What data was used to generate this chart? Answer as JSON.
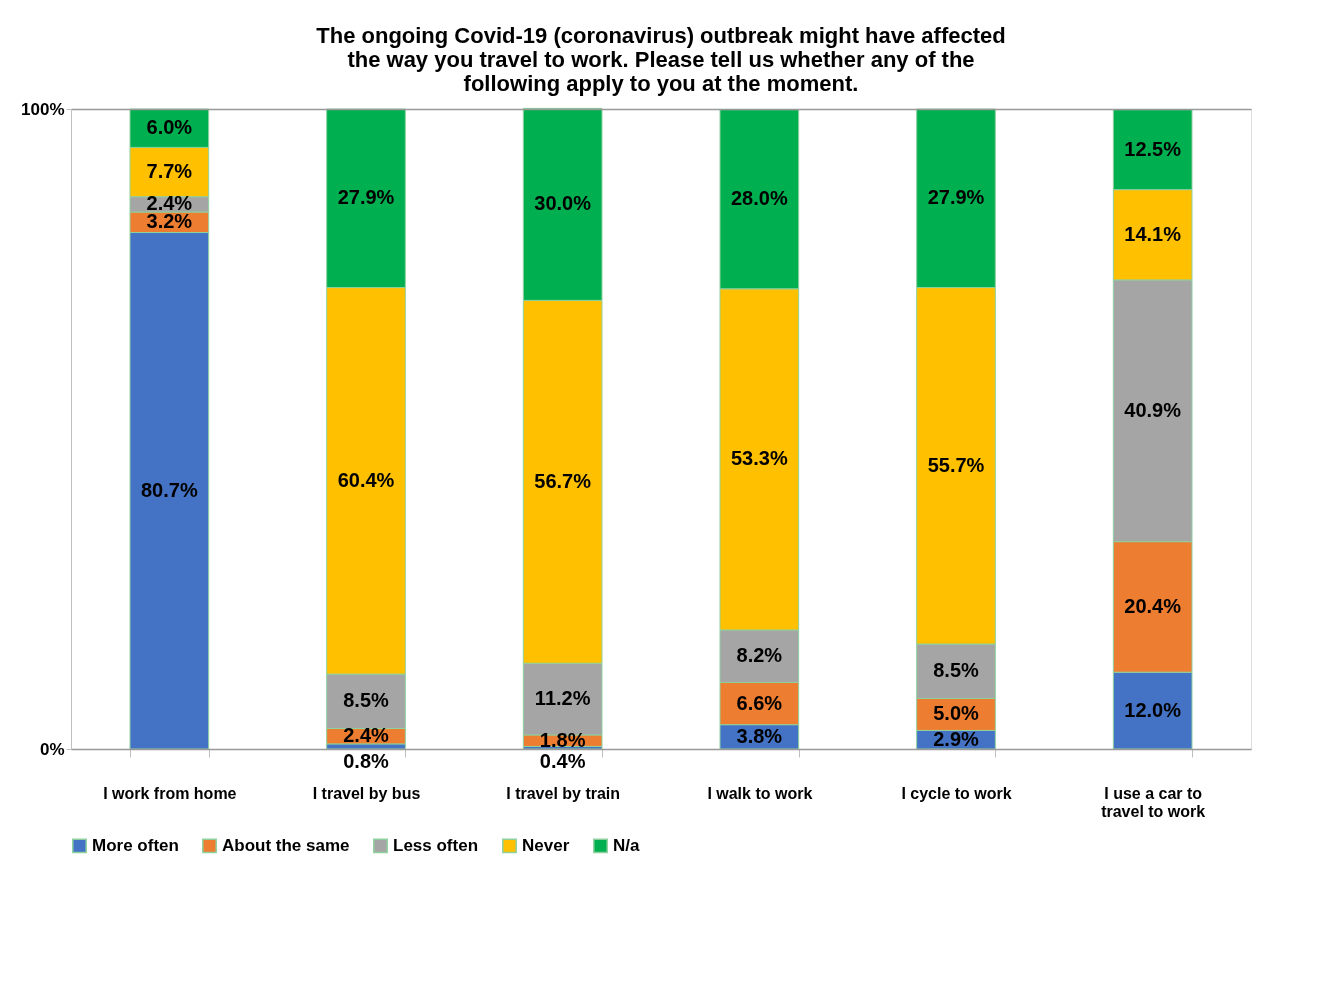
{
  "chart_data": {
    "type": "bar",
    "stacked": true,
    "title": "The ongoing  Covid-19 (coronavirus) outbreak might have affected the way you travel to work. Please tell us whether any of the following apply to you at the moment.",
    "categories": [
      "I work from home",
      "I travel by bus",
      "I travel by train",
      "I walk to work",
      "I cycle to work",
      "I use a car to travel to work"
    ],
    "series": [
      {
        "name": "More often",
        "color": "#4472c4",
        "values": [
          80.7,
          0.8,
          0.4,
          3.8,
          2.9,
          12.0
        ],
        "value_labels": [
          "80.7%",
          "0.8%",
          "0.4%",
          "3.8%",
          "2.9%",
          "12.0%"
        ]
      },
      {
        "name": "About the same",
        "color": "#ed7d31",
        "values": [
          3.2,
          2.4,
          1.8,
          6.6,
          5.0,
          20.4
        ],
        "value_labels": [
          "3.2%",
          "2.4%",
          "1.8%",
          "6.6%",
          "5.0%",
          "20.4%"
        ]
      },
      {
        "name": "Less often",
        "color": "#a5a5a5",
        "values": [
          2.4,
          8.5,
          11.2,
          8.2,
          8.5,
          40.9
        ],
        "value_labels": [
          "2.4%",
          "8.5%",
          "11.2%",
          "8.2%",
          "8.5%",
          "40.9%"
        ]
      },
      {
        "name": "Never",
        "color": "#ffc000",
        "values": [
          7.7,
          60.4,
          56.7,
          53.3,
          55.7,
          14.1
        ],
        "value_labels": [
          "7.7%",
          "60.4%",
          "56.7%",
          "53.3%",
          "55.7%",
          "14.1%"
        ]
      },
      {
        "name": "N/a",
        "color": "#00b050",
        "values": [
          6.0,
          27.9,
          30.0,
          28.0,
          27.9,
          12.5
        ],
        "value_labels": [
          "6.0%",
          "27.9%",
          "30.0%",
          "28.0%",
          "27.9%",
          "12.5%"
        ]
      }
    ],
    "ylim": [
      0,
      100
    ],
    "yticks": [
      {
        "value": 0,
        "label": "0%"
      },
      {
        "value": 100,
        "label": "100%"
      }
    ],
    "grid": "y",
    "legend": "bottom"
  }
}
